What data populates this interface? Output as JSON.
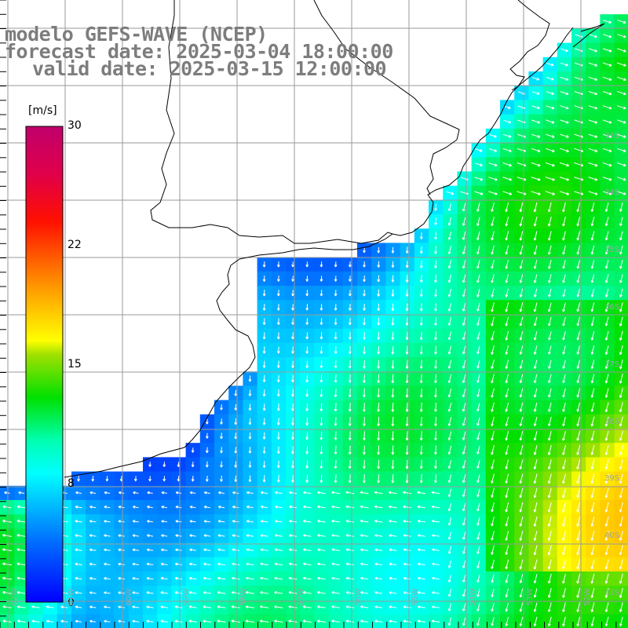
{
  "title": {
    "line1": "modelo GEFS-WAVE (NCEP)",
    "line2": "forecast date: 2025-03-04 18:00:00",
    "line3": "valid date: 2025-03-15 12:00:00"
  },
  "colorbar": {
    "unit": "[m/s]",
    "ticks": [
      "30",
      "22",
      "15",
      "8",
      "0"
    ],
    "tick_values": [
      30,
      22,
      15,
      8,
      0
    ],
    "min": 0,
    "max": 30,
    "colors": [
      "#0000ff",
      "#0060ff",
      "#00c8ff",
      "#00ffd0",
      "#00e070",
      "#22d000",
      "#a0e000",
      "#ffff00",
      "#ffa000",
      "#ff4000",
      "#ff0000",
      "#e0004a",
      "#c0006c"
    ]
  },
  "map": {
    "variable": "wind speed",
    "land_color": "#ffffff",
    "grid_color": "#9a9a9a",
    "arrow_color": "#ffffff",
    "lat_labels": [
      "33S",
      "34S",
      "35S",
      "36S",
      "37S",
      "38S",
      "39S",
      "40S",
      "41S"
    ],
    "lon_labels": [
      "62W",
      "61W",
      "60W",
      "59W",
      "58W",
      "57W",
      "56W",
      "55W",
      "54W",
      "53W",
      "52W"
    ]
  }
}
